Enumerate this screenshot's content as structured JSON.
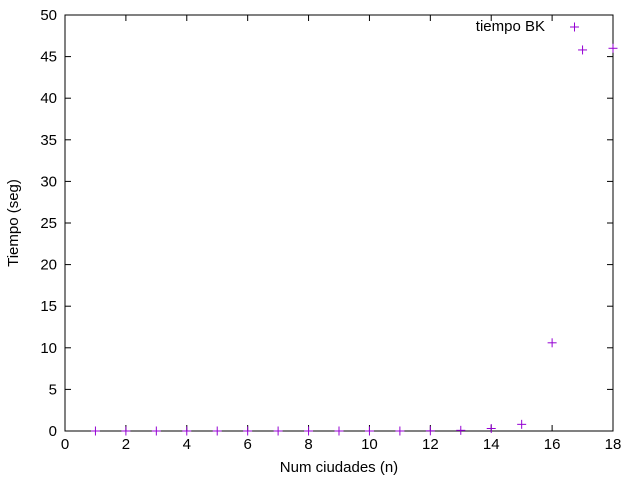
{
  "chart_data": {
    "type": "scatter",
    "title": "",
    "xlabel": "Num ciudades (n)",
    "ylabel": "Tiempo (seg)",
    "xlim": [
      0,
      18
    ],
    "ylim": [
      0,
      50
    ],
    "xticks": [
      0,
      2,
      4,
      6,
      8,
      10,
      12,
      14,
      16,
      18
    ],
    "yticks": [
      0,
      5,
      10,
      15,
      20,
      25,
      30,
      35,
      40,
      45,
      50
    ],
    "grid": false,
    "legend_position": "top-right",
    "series": [
      {
        "name": "tiempo BK",
        "color": "#9400d3",
        "marker": "plus",
        "x": [
          1,
          2,
          3,
          4,
          5,
          6,
          7,
          8,
          9,
          10,
          11,
          12,
          13,
          14,
          15,
          16,
          17,
          18
        ],
        "y": [
          0,
          0,
          0,
          0,
          0,
          0,
          0,
          0,
          0,
          0,
          0,
          0.02,
          0.08,
          0.3,
          0.8,
          10.6,
          45.8,
          46.0
        ]
      }
    ]
  }
}
